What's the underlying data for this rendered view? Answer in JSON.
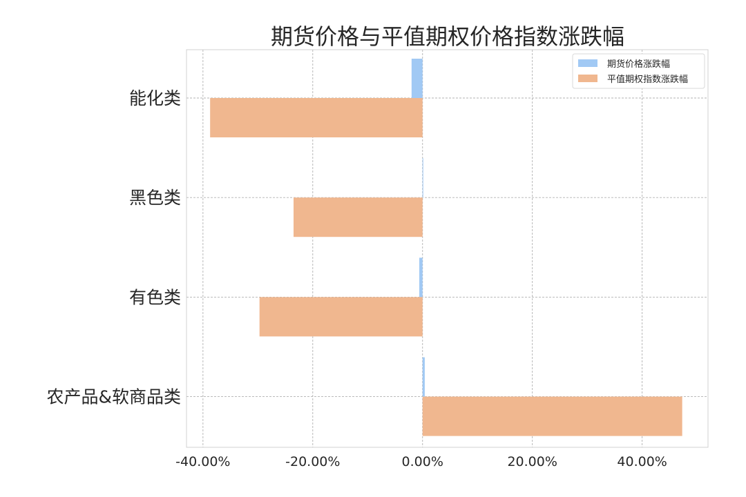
{
  "chart_data": {
    "type": "bar",
    "orientation": "horizontal",
    "title": "期货价格与平值期权价格指数涨跌幅",
    "categories": [
      "能化类",
      "黑色类",
      "有色类",
      "农产品&软商品类"
    ],
    "series": [
      {
        "name": "期货价格涨跌幅",
        "color": "#a1c9f4",
        "values": [
          -2.0,
          0.0,
          -0.6,
          0.4
        ]
      },
      {
        "name": "平值期权指数涨跌幅",
        "color": "#f0b78f",
        "values": [
          -38.7,
          -23.5,
          -29.7,
          47.3
        ]
      }
    ],
    "xlim": [
      -43,
      52
    ],
    "xticks": [
      -40,
      -20,
      0,
      20,
      40
    ],
    "xtick_labels": [
      "-40.00%",
      "-20.00%",
      "0.00%",
      "20.00%",
      "40.00%"
    ],
    "xlabel": "",
    "ylabel": "",
    "grid": true,
    "legend_position": "top-right"
  }
}
